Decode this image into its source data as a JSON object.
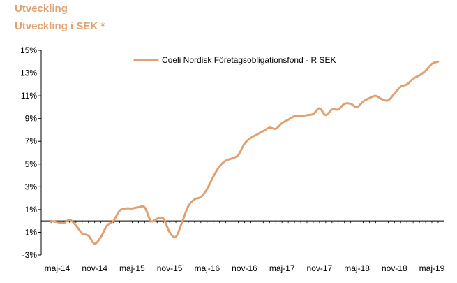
{
  "header": {
    "title": "Utveckling",
    "subtitle": "Utveckling i SEK *"
  },
  "colors": {
    "accent": "#E0A070",
    "series": "#E0A070",
    "axis": "#000000"
  },
  "chart_data": {
    "type": "line",
    "title": "Utveckling",
    "subtitle": "Utveckling i SEK *",
    "xlabel": "",
    "ylabel": "",
    "ylim": [
      -3,
      15
    ],
    "y_ticks": [
      15,
      13,
      11,
      9,
      7,
      5,
      3,
      1,
      -1,
      -3
    ],
    "y_tick_labels": [
      "15%",
      "13%",
      "11%",
      "9%",
      "7%",
      "5%",
      "3%",
      "1%",
      "-1%",
      "-3%"
    ],
    "x_tick_labels": [
      "maj-14",
      "nov-14",
      "maj-15",
      "nov-15",
      "maj-16",
      "nov-16",
      "maj-17",
      "nov-17",
      "maj-18",
      "nov-18",
      "maj-19"
    ],
    "grid": false,
    "legend_position": "top-right",
    "series": [
      {
        "name": "Coeli Nordisk Företagsobligationsfond - R SEK",
        "x": [
          "2014-04-01",
          "2014-05-01",
          "2014-06-01",
          "2014-07-01",
          "2014-08-01",
          "2014-09-01",
          "2014-10-01",
          "2014-11-01",
          "2014-12-01",
          "2015-01-01",
          "2015-02-01",
          "2015-03-01",
          "2015-04-01",
          "2015-05-01",
          "2015-06-01",
          "2015-07-01",
          "2015-08-01",
          "2015-09-01",
          "2015-10-01",
          "2015-11-01",
          "2015-12-01",
          "2016-01-01",
          "2016-02-01",
          "2016-03-01",
          "2016-04-01",
          "2016-05-01",
          "2016-06-01",
          "2016-07-01",
          "2016-08-01",
          "2016-09-01",
          "2016-10-01",
          "2016-11-01",
          "2016-12-01",
          "2017-01-01",
          "2017-02-01",
          "2017-03-01",
          "2017-04-01",
          "2017-05-01",
          "2017-06-01",
          "2017-07-01",
          "2017-08-01",
          "2017-09-01",
          "2017-10-01",
          "2017-11-01",
          "2017-12-01",
          "2018-01-01",
          "2018-02-01",
          "2018-03-01",
          "2018-04-01",
          "2018-05-01",
          "2018-06-01",
          "2018-07-01",
          "2018-08-01",
          "2018-09-01",
          "2018-10-01",
          "2018-11-01",
          "2018-12-01",
          "2019-01-01",
          "2019-02-01",
          "2019-03-01",
          "2019-04-01",
          "2019-05-01",
          "2019-06-01"
        ],
        "values": [
          0.0,
          -0.1,
          -0.2,
          0.1,
          -0.4,
          -1.1,
          -1.3,
          -2.0,
          -1.4,
          -0.4,
          0.0,
          0.9,
          1.1,
          1.1,
          1.2,
          1.2,
          0.0,
          0.2,
          0.2,
          -1.0,
          -1.4,
          -0.1,
          1.3,
          1.9,
          2.1,
          2.8,
          3.9,
          4.8,
          5.3,
          5.5,
          5.8,
          6.8,
          7.3,
          7.6,
          7.9,
          8.2,
          8.1,
          8.6,
          8.9,
          9.2,
          9.2,
          9.3,
          9.4,
          9.9,
          9.3,
          9.8,
          9.8,
          10.3,
          10.3,
          10.0,
          10.5,
          10.8,
          11.0,
          10.7,
          10.6,
          11.2,
          11.8,
          12.0,
          12.5,
          12.8,
          13.2,
          13.8,
          14.0
        ]
      }
    ]
  }
}
